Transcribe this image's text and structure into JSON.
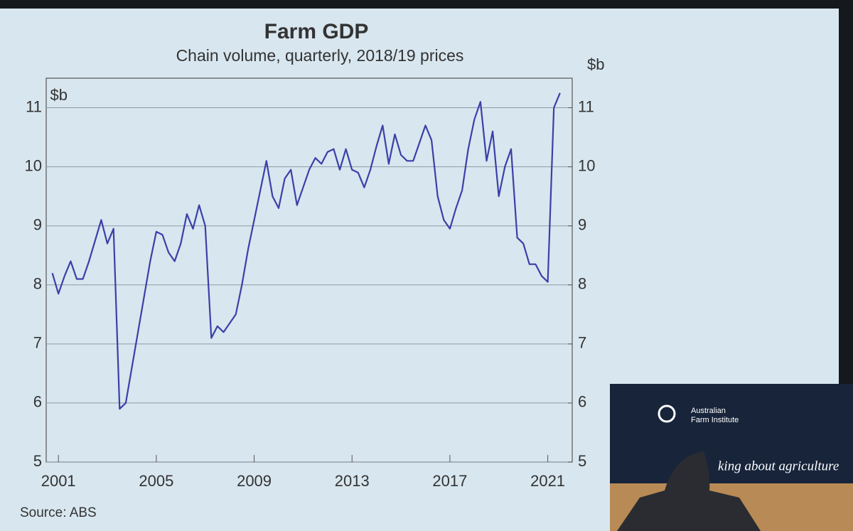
{
  "chart_data": {
    "type": "line",
    "title": "Farm GDP",
    "subtitle": "Chain volume, quarterly, 2018/19 prices",
    "y_unit": "$b",
    "y2_unit": "$b",
    "source": "Source:  ABS",
    "color": "#3c3fa8",
    "x": [
      2000.75,
      2001,
      2001.25,
      2001.5,
      2001.75,
      2002,
      2002.25,
      2002.5,
      2002.75,
      2003,
      2003.25,
      2003.5,
      2003.75,
      2004,
      2004.25,
      2004.5,
      2004.75,
      2005,
      2005.25,
      2005.5,
      2005.75,
      2006,
      2006.25,
      2006.5,
      2006.75,
      2007,
      2007.25,
      2007.5,
      2007.75,
      2008,
      2008.25,
      2008.5,
      2008.75,
      2009,
      2009.25,
      2009.5,
      2009.75,
      2010,
      2010.25,
      2010.5,
      2010.75,
      2011,
      2011.25,
      2011.5,
      2011.75,
      2012,
      2012.25,
      2012.5,
      2012.75,
      2013,
      2013.25,
      2013.5,
      2013.75,
      2014,
      2014.25,
      2014.5,
      2014.75,
      2015,
      2015.25,
      2015.5,
      2015.75,
      2016,
      2016.25,
      2016.5,
      2016.75,
      2017,
      2017.25,
      2017.5,
      2017.75,
      2018,
      2018.25,
      2018.5,
      2018.75,
      2019,
      2019.25,
      2019.5,
      2019.75,
      2020,
      2020.25,
      2020.5,
      2020.75,
      2021,
      2021.25,
      2021.5
    ],
    "values": [
      8.2,
      7.85,
      8.15,
      8.4,
      8.1,
      8.1,
      8.4,
      8.75,
      9.1,
      8.7,
      8.95,
      5.9,
      6.0,
      6.6,
      7.2,
      7.8,
      8.4,
      8.9,
      8.85,
      8.55,
      8.4,
      8.7,
      9.2,
      8.95,
      9.35,
      9.0,
      7.1,
      7.3,
      7.2,
      7.35,
      7.5,
      8.0,
      8.6,
      9.1,
      9.6,
      10.1,
      9.5,
      9.3,
      9.8,
      9.95,
      9.35,
      9.65,
      9.95,
      10.15,
      10.05,
      10.25,
      10.3,
      9.95,
      10.3,
      9.95,
      9.9,
      9.65,
      9.95,
      10.35,
      10.7,
      10.05,
      10.55,
      10.2,
      10.1,
      10.1,
      10.4,
      10.7,
      10.45,
      9.5,
      9.1,
      8.95,
      9.3,
      9.6,
      10.3,
      10.8,
      11.1,
      10.1,
      10.6,
      9.5,
      10.0,
      10.3,
      8.8,
      8.7,
      8.35,
      8.35,
      8.15,
      8.05,
      11.0,
      11.25
    ],
    "xlim": [
      2000.5,
      2022
    ],
    "xticks": [
      2001,
      2005,
      2009,
      2013,
      2017,
      2021
    ],
    "ylim": [
      5,
      11.5
    ],
    "yticks": [
      5,
      6,
      7,
      8,
      9,
      10,
      11
    ],
    "y2lim": [
      5,
      11.5
    ],
    "y2ticks": [
      5,
      6,
      7,
      8,
      9,
      10,
      11
    ],
    "grid": true
  },
  "banner": {
    "org_line1": "Australian",
    "org_line2": "Farm Institute",
    "tagline": "king about agriculture"
  }
}
